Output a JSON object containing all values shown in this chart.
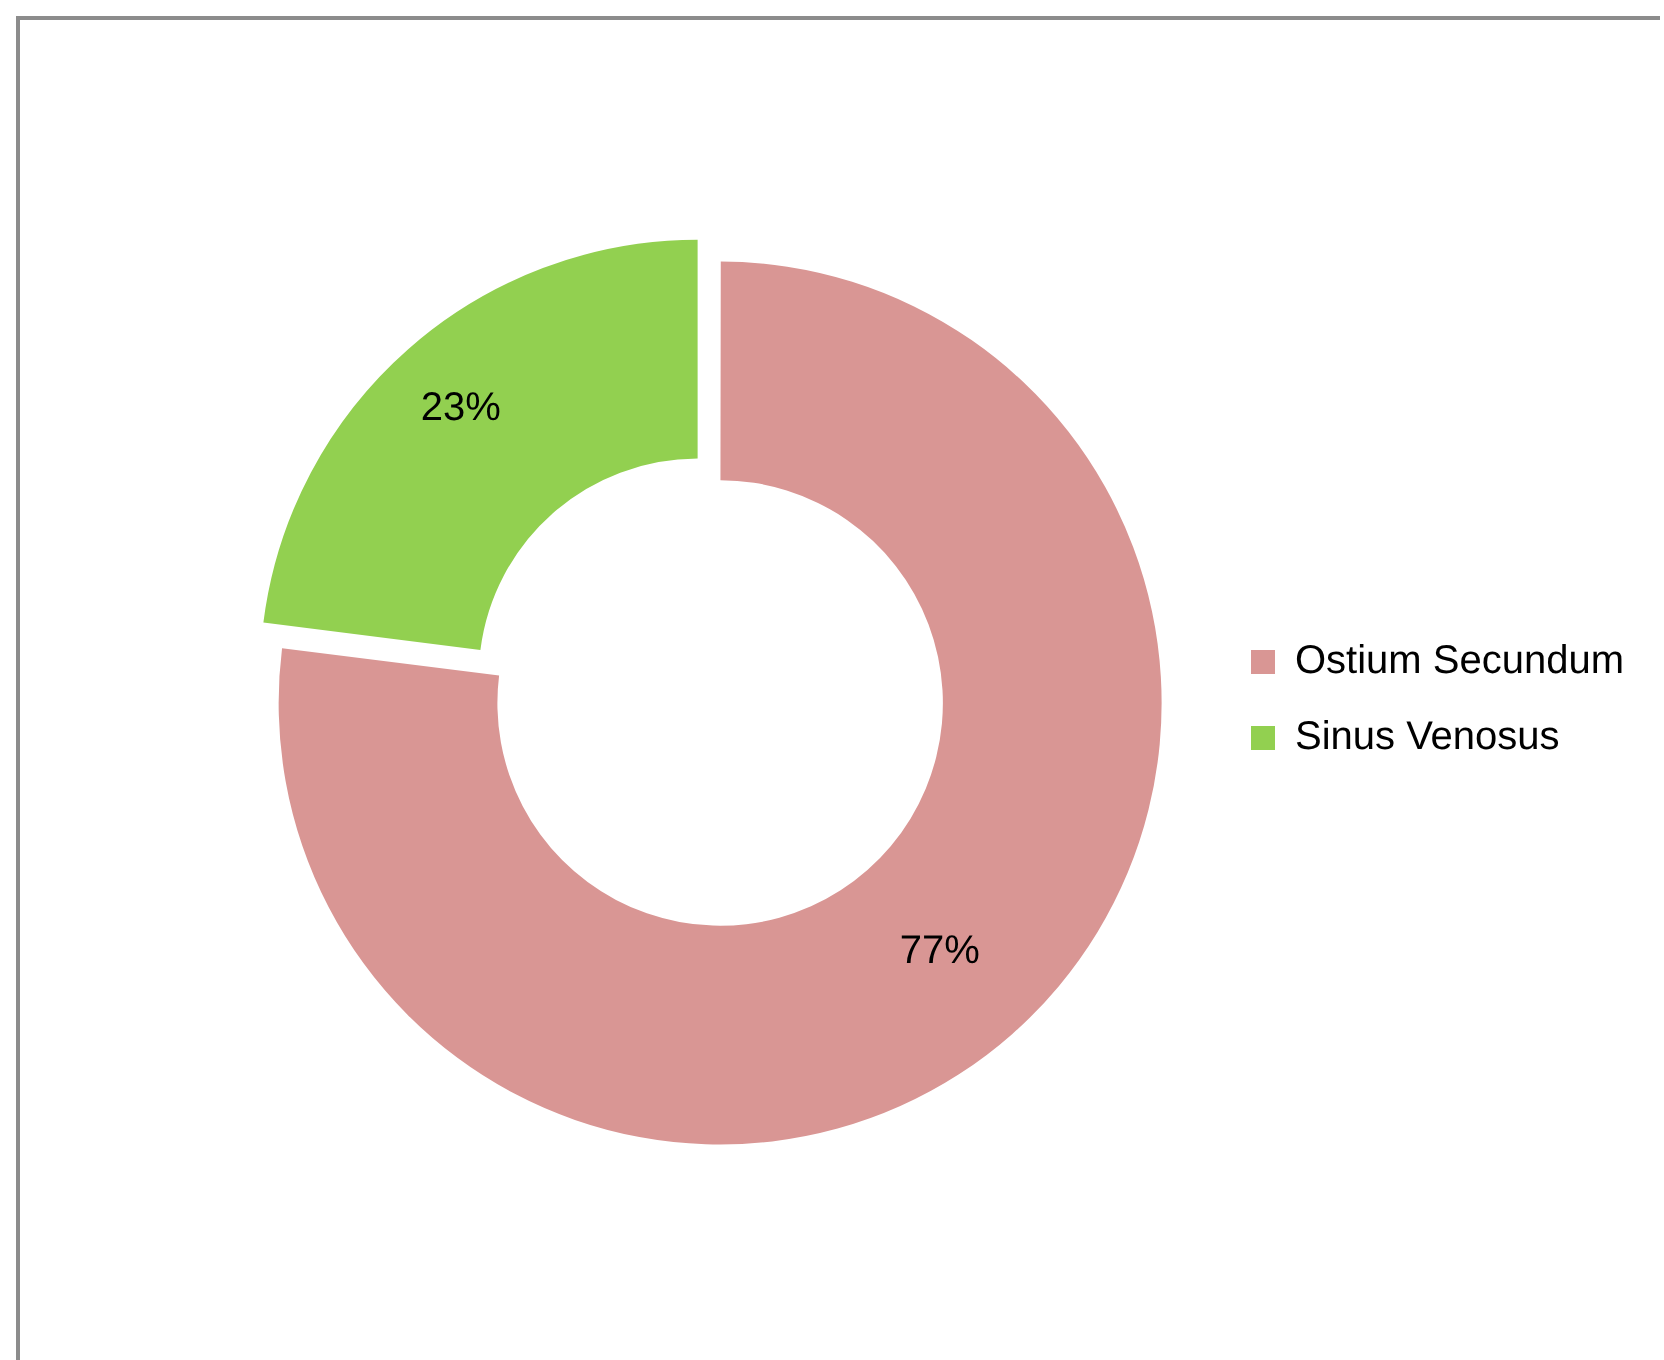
{
  "chart_data": {
    "type": "donut",
    "categories": [
      "Ostium Secundum",
      "Sinus Venosus"
    ],
    "values": [
      77,
      23
    ],
    "colors": [
      "#d99694",
      "#92d050"
    ],
    "value_labels": [
      "77%",
      "23%"
    ],
    "legend": "right"
  }
}
